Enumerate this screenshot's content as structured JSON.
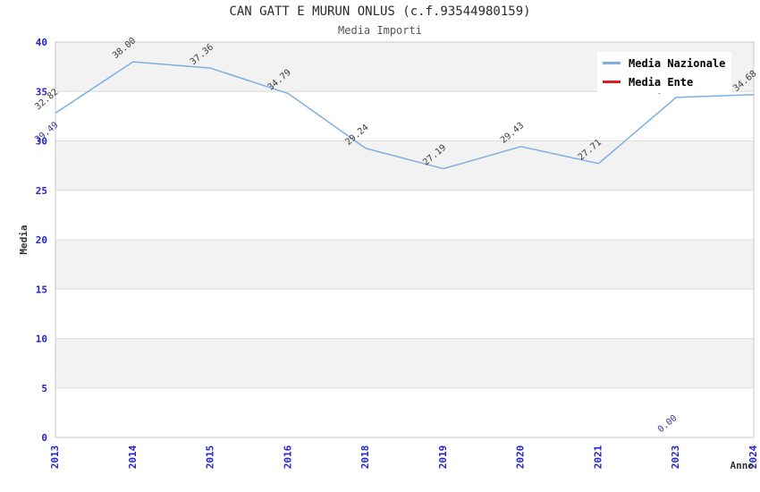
{
  "header": {
    "title": "CAN GATT E MURUN ONLUS (c.f.93544980159)",
    "subtitle": "Media Importi"
  },
  "chart_data": {
    "type": "line",
    "title": "CAN GATT E MURUN ONLUS (c.f.93544980159)",
    "subtitle": "Media Importi",
    "xlabel": "Anno",
    "ylabel": "Media",
    "categories": [
      "2013",
      "2014",
      "2015",
      "2016",
      "2018",
      "2019",
      "2020",
      "2021",
      "2023",
      "2024"
    ],
    "series": [
      {
        "name": "Media Nazionale",
        "color": "#7caee4",
        "label_color": "#3a3a3a",
        "values": [
          32.82,
          38.0,
          37.36,
          34.79,
          29.24,
          27.19,
          29.43,
          27.71,
          34.4,
          34.68
        ]
      },
      {
        "name": "Media Ente",
        "color": "#e02020",
        "label_color": "#373794",
        "values": [
          29.49,
          null,
          null,
          null,
          null,
          null,
          null,
          null,
          0.0,
          null
        ]
      }
    ],
    "ylim": [
      0,
      40
    ],
    "yticks": [
      0,
      5,
      10,
      15,
      20,
      25,
      30,
      35,
      40
    ],
    "grid": true,
    "legend_position": "top-right",
    "band_color": "#f2f2f2",
    "grid_color": "#dcdcdc",
    "border_color": "#c8c8c8",
    "tick_color": "#2222cc",
    "axis_title_color": "#333333"
  },
  "legend": {
    "items": [
      {
        "label": "Media Nazionale",
        "color": "#7caee4"
      },
      {
        "label": "Media Ente",
        "color": "#e02020"
      }
    ]
  }
}
